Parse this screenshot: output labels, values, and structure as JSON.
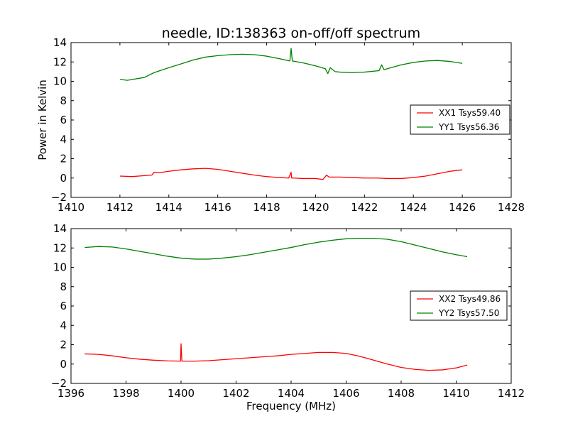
{
  "title": "needle, ID:138363 on-off/off spectrum",
  "chart_data": [
    {
      "type": "line",
      "title": "needle, ID:138363 on-off/off spectrum",
      "xlabel": "",
      "ylabel": "Power in Kelvin",
      "xlim": [
        1410,
        1428
      ],
      "ylim": [
        -2,
        14
      ],
      "xticks": [
        1410,
        1412,
        1414,
        1416,
        1418,
        1420,
        1422,
        1424,
        1426,
        1428
      ],
      "yticks": [
        -2,
        0,
        2,
        4,
        6,
        8,
        10,
        12,
        14
      ],
      "grid": false,
      "legend_position": "right",
      "series": [
        {
          "name": "XX1 Tsys59.40",
          "color": "#ff0000",
          "x": [
            1412.0,
            1412.5,
            1413.0,
            1413.3,
            1413.4,
            1413.6,
            1414.0,
            1414.5,
            1415.0,
            1415.5,
            1416.0,
            1416.5,
            1417.0,
            1417.5,
            1418.0,
            1418.5,
            1418.9,
            1419.0,
            1419.02,
            1419.1,
            1419.5,
            1420.0,
            1420.3,
            1420.45,
            1420.55,
            1420.7,
            1421.0,
            1421.5,
            1422.0,
            1422.5,
            1423.0,
            1423.5,
            1424.0,
            1424.5,
            1425.0,
            1425.5,
            1426.0
          ],
          "values": [
            0.2,
            0.15,
            0.25,
            0.3,
            0.6,
            0.55,
            0.7,
            0.85,
            0.95,
            1.0,
            0.9,
            0.7,
            0.5,
            0.3,
            0.15,
            0.05,
            0.0,
            0.6,
            0.0,
            0.0,
            -0.05,
            -0.05,
            -0.15,
            0.3,
            0.1,
            0.1,
            0.1,
            0.05,
            0.0,
            0.0,
            -0.05,
            -0.05,
            0.05,
            0.2,
            0.45,
            0.7,
            0.85
          ]
        },
        {
          "name": "YY1 Tsys56.36",
          "color": "#008000",
          "x": [
            1412.0,
            1412.3,
            1413.0,
            1413.4,
            1414.0,
            1414.5,
            1415.0,
            1415.5,
            1416.0,
            1416.5,
            1417.0,
            1417.5,
            1418.0,
            1418.5,
            1418.95,
            1419.0,
            1419.05,
            1419.5,
            1420.0,
            1420.4,
            1420.5,
            1420.6,
            1420.8,
            1421.0,
            1421.5,
            1422.0,
            1422.6,
            1422.7,
            1422.8,
            1423.0,
            1423.5,
            1424.0,
            1424.5,
            1425.0,
            1425.5,
            1426.0
          ],
          "values": [
            10.2,
            10.1,
            10.4,
            10.9,
            11.4,
            11.8,
            12.2,
            12.5,
            12.65,
            12.75,
            12.8,
            12.75,
            12.6,
            12.35,
            12.1,
            13.4,
            12.1,
            11.9,
            11.6,
            11.3,
            10.8,
            11.4,
            11.0,
            10.95,
            10.9,
            10.95,
            11.1,
            11.7,
            11.2,
            11.35,
            11.7,
            11.95,
            12.1,
            12.15,
            12.05,
            11.85
          ]
        }
      ]
    },
    {
      "type": "line",
      "title": "",
      "xlabel": "Frequency (MHz)",
      "ylabel": "",
      "xlim": [
        1396,
        1412
      ],
      "ylim": [
        -2,
        14
      ],
      "xticks": [
        1396,
        1398,
        1400,
        1402,
        1404,
        1406,
        1408,
        1410,
        1412
      ],
      "yticks": [
        -2,
        0,
        2,
        4,
        6,
        8,
        10,
        12,
        14
      ],
      "grid": false,
      "legend_position": "right",
      "series": [
        {
          "name": "XX2 Tsys49.86",
          "color": "#ff0000",
          "x": [
            1396.5,
            1397.0,
            1397.5,
            1398.0,
            1398.5,
            1399.0,
            1399.5,
            1399.98,
            1400.0,
            1400.03,
            1400.5,
            1401.0,
            1401.5,
            1402.0,
            1402.5,
            1403.0,
            1403.5,
            1404.0,
            1404.5,
            1405.0,
            1405.5,
            1406.0,
            1406.5,
            1407.0,
            1407.5,
            1408.0,
            1408.5,
            1409.0,
            1409.5,
            1410.0,
            1410.4
          ],
          "values": [
            1.05,
            1.0,
            0.85,
            0.65,
            0.5,
            0.4,
            0.33,
            0.3,
            2.1,
            0.3,
            0.3,
            0.35,
            0.45,
            0.55,
            0.65,
            0.75,
            0.85,
            1.0,
            1.1,
            1.2,
            1.2,
            1.1,
            0.8,
            0.4,
            0.0,
            -0.35,
            -0.55,
            -0.65,
            -0.6,
            -0.4,
            -0.1
          ]
        },
        {
          "name": "YY2 Tsys57.50",
          "color": "#008000",
          "x": [
            1396.5,
            1397.0,
            1397.5,
            1398.0,
            1398.5,
            1399.0,
            1399.5,
            1400.0,
            1400.5,
            1401.0,
            1401.5,
            1402.0,
            1402.5,
            1403.0,
            1403.5,
            1404.0,
            1404.5,
            1405.0,
            1405.5,
            1406.0,
            1406.5,
            1407.0,
            1407.5,
            1408.0,
            1408.5,
            1409.0,
            1409.5,
            1410.0,
            1410.4
          ],
          "values": [
            12.05,
            12.15,
            12.1,
            11.9,
            11.65,
            11.4,
            11.15,
            10.95,
            10.85,
            10.85,
            10.95,
            11.1,
            11.3,
            11.55,
            11.8,
            12.05,
            12.35,
            12.6,
            12.8,
            12.95,
            13.0,
            13.0,
            12.9,
            12.65,
            12.3,
            11.95,
            11.6,
            11.3,
            11.1
          ]
        }
      ]
    }
  ]
}
